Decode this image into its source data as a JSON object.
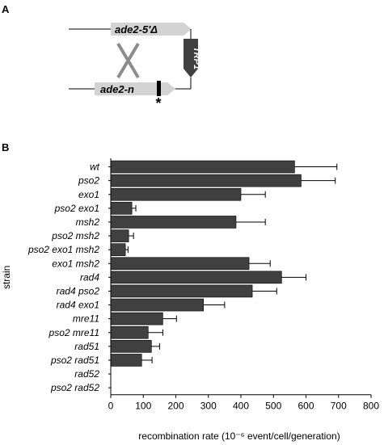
{
  "panel_a": {
    "label": "A",
    "upper_gene": "ade2-5′Δ",
    "marker": "TRP1",
    "lower_gene": "ade2-n",
    "mutation_mark": "*"
  },
  "panel_b": {
    "label": "B"
  },
  "chart_data": {
    "type": "bar",
    "orientation": "horizontal",
    "categories": [
      "wt",
      "pso2",
      "exo1",
      "pso2 exo1",
      "msh2",
      "pso2 msh2",
      "pso2 exo1 msh2",
      "exo1 msh2",
      "rad4",
      "rad4 pso2",
      "rad4 exo1",
      "mre11",
      "pso2 mre11",
      "rad51",
      "pso2 rad51",
      "rad52",
      "pso2 rad52"
    ],
    "values": [
      565,
      585,
      400,
      65,
      385,
      55,
      45,
      425,
      525,
      435,
      285,
      160,
      115,
      125,
      95,
      0,
      0
    ],
    "errors": [
      130,
      105,
      75,
      12,
      90,
      15,
      8,
      65,
      75,
      75,
      65,
      42,
      45,
      25,
      32,
      0,
      0
    ],
    "xlabel": "recombination rate (10⁻⁶ event/cell/generation)",
    "ylabel": "strain",
    "xlim": [
      0,
      800
    ],
    "xticks": [
      0,
      100,
      200,
      300,
      400,
      500,
      600,
      700,
      800
    ],
    "bar_color": "#404040",
    "grid": false
  }
}
